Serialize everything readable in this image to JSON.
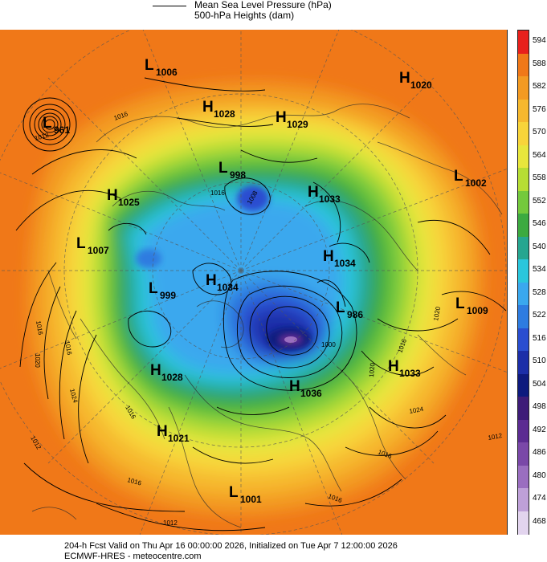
{
  "legend": {
    "mslp": "Mean Sea Level Pressure (hPa)",
    "heights": "500-hPa Heights (dam)"
  },
  "colorbar": {
    "ticks": [
      "594",
      "588",
      "582",
      "576",
      "570",
      "564",
      "558",
      "552",
      "546",
      "540",
      "534",
      "528",
      "522",
      "516",
      "510",
      "504",
      "498",
      "492",
      "486",
      "480",
      "474",
      "468"
    ],
    "colors": [
      "#e8201c",
      "#f07818",
      "#f39a22",
      "#f6b82e",
      "#f8d43a",
      "#e8e63c",
      "#b6dd34",
      "#74c93c",
      "#3caa40",
      "#26a690",
      "#2ac6dc",
      "#3aa8ee",
      "#2e7ce0",
      "#2a4ed0",
      "#1c2ea8",
      "#0e1a7e",
      "#3e1c78",
      "#5c2c92",
      "#7a48a8",
      "#9a6ec0",
      "#bea0d8",
      "#e2d4ee"
    ]
  },
  "systems": [
    {
      "type": "L",
      "value": "1006"
    },
    {
      "type": "H",
      "value": "1020"
    },
    {
      "type": "H",
      "value": "1028"
    },
    {
      "type": "H",
      "value": "1029"
    },
    {
      "type": "L",
      "value": "961"
    },
    {
      "type": "L",
      "value": "998"
    },
    {
      "type": "H",
      "value": "1033"
    },
    {
      "type": "L",
      "value": "1002"
    },
    {
      "type": "H",
      "value": "1025"
    },
    {
      "type": "L",
      "value": "1007"
    },
    {
      "type": "H",
      "value": "1034"
    },
    {
      "type": "L",
      "value": "999"
    },
    {
      "type": "H",
      "value": "1034"
    },
    {
      "type": "L",
      "value": "986"
    },
    {
      "type": "L",
      "value": "1009"
    },
    {
      "type": "H",
      "value": "1028"
    },
    {
      "type": "H",
      "value": "1036"
    },
    {
      "type": "H",
      "value": "1033"
    },
    {
      "type": "H",
      "value": "1021"
    },
    {
      "type": "L",
      "value": "1001"
    }
  ],
  "contour_labels": [
    "1016",
    "1012",
    "1016",
    "1016",
    "1008",
    "1020",
    "1016",
    "1024",
    "1016",
    "1012",
    "1020",
    "1016",
    "1024",
    "1020",
    "1016",
    "1012",
    "1016",
    "1012",
    "1016",
    "1000"
  ],
  "footer": {
    "line1": "204-h Fcst Valid on Thu Apr 16 00:00:00 2026, Initialized on Tue Apr  7 12:00:00 2026",
    "line2": "ECMWF-HRES  - meteocentre.com"
  }
}
